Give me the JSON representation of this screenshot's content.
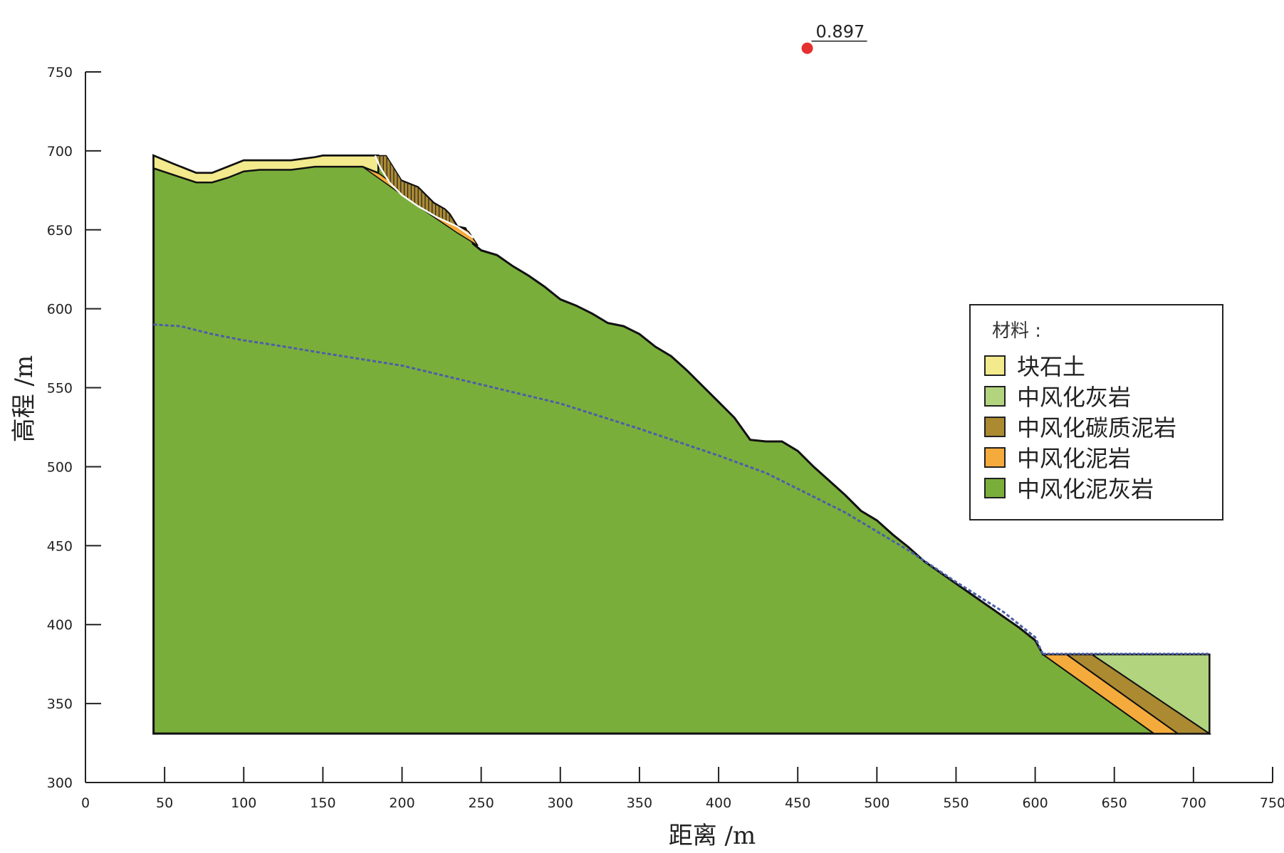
{
  "chart_data": {
    "type": "cross-section",
    "xlabel": "距离 /m",
    "ylabel": "高程 /m",
    "xlim": [
      0,
      750
    ],
    "ylim": [
      300,
      750
    ],
    "xticks": [
      0,
      50,
      100,
      150,
      200,
      250,
      300,
      350,
      400,
      450,
      500,
      550,
      600,
      650,
      700,
      750
    ],
    "yticks": [
      300,
      350,
      400,
      450,
      500,
      550,
      600,
      650,
      700,
      750
    ],
    "factor_of_safety": "0.897",
    "slip_center": {
      "x": 456,
      "y": 765
    },
    "legend_title": "材料 :",
    "materials": [
      {
        "name": "块石土",
        "color": "#f2ea8c"
      },
      {
        "name": "中风化灰岩",
        "color": "#b2d47f"
      },
      {
        "name": "中风化碳质泥岩",
        "color": "#ab8a32"
      },
      {
        "name": "中风化泥岩",
        "color": "#f5ab3c"
      },
      {
        "name": "中风化泥灰岩",
        "color": "#7aae3b"
      }
    ],
    "model_bottom": 331,
    "model_left": 43,
    "model_right": 710,
    "ground_surface": [
      [
        43,
        697
      ],
      [
        55,
        692
      ],
      [
        70,
        686
      ],
      [
        80,
        686
      ],
      [
        90,
        690
      ],
      [
        100,
        694
      ],
      [
        110,
        694
      ],
      [
        130,
        694
      ],
      [
        145,
        696
      ],
      [
        150,
        697
      ],
      [
        160,
        697
      ],
      [
        170,
        697
      ],
      [
        175,
        697
      ],
      [
        185,
        697
      ],
      [
        190,
        689
      ],
      [
        195,
        681
      ],
      [
        200,
        681
      ],
      [
        210,
        677
      ],
      [
        220,
        667
      ],
      [
        227,
        663
      ],
      [
        230,
        660
      ],
      [
        235,
        652
      ],
      [
        240,
        651
      ],
      [
        245,
        641
      ],
      [
        250,
        637
      ],
      [
        260,
        634
      ],
      [
        270,
        627
      ],
      [
        280,
        621
      ],
      [
        290,
        614
      ],
      [
        300,
        606
      ],
      [
        310,
        602
      ],
      [
        320,
        597
      ],
      [
        330,
        591
      ],
      [
        340,
        589
      ],
      [
        350,
        584
      ],
      [
        360,
        576
      ],
      [
        370,
        570
      ],
      [
        380,
        561
      ],
      [
        390,
        551
      ],
      [
        400,
        541
      ],
      [
        410,
        531
      ],
      [
        420,
        517
      ],
      [
        430,
        516
      ],
      [
        440,
        516
      ],
      [
        450,
        510
      ],
      [
        460,
        500
      ],
      [
        470,
        491
      ],
      [
        480,
        482
      ],
      [
        490,
        472
      ],
      [
        500,
        466
      ],
      [
        510,
        457
      ],
      [
        520,
        449
      ],
      [
        530,
        440
      ],
      [
        540,
        433
      ],
      [
        550,
        426
      ],
      [
        560,
        419
      ],
      [
        570,
        412
      ],
      [
        580,
        405
      ],
      [
        590,
        398
      ],
      [
        600,
        390
      ],
      [
        605,
        381
      ],
      [
        710,
        381
      ]
    ],
    "soil_bottom": [
      [
        43,
        689
      ],
      [
        55,
        685
      ],
      [
        70,
        680
      ],
      [
        80,
        680
      ],
      [
        90,
        683
      ],
      [
        100,
        687
      ],
      [
        110,
        688
      ],
      [
        130,
        688
      ],
      [
        145,
        690
      ],
      [
        160,
        690
      ],
      [
        175,
        690
      ],
      [
        180,
        688
      ],
      [
        185,
        686
      ]
    ],
    "water_table": [
      [
        43,
        590
      ],
      [
        60,
        589
      ],
      [
        80,
        584
      ],
      [
        100,
        580
      ],
      [
        120,
        577
      ],
      [
        150,
        572
      ],
      [
        200,
        564
      ],
      [
        250,
        552
      ],
      [
        300,
        540
      ],
      [
        350,
        524
      ],
      [
        400,
        507
      ],
      [
        430,
        496
      ],
      [
        460,
        481
      ],
      [
        480,
        471
      ],
      [
        500,
        459
      ],
      [
        520,
        447
      ],
      [
        550,
        427
      ],
      [
        580,
        408
      ],
      [
        600,
        392
      ],
      [
        605,
        381
      ],
      [
        710,
        381
      ]
    ]
  }
}
